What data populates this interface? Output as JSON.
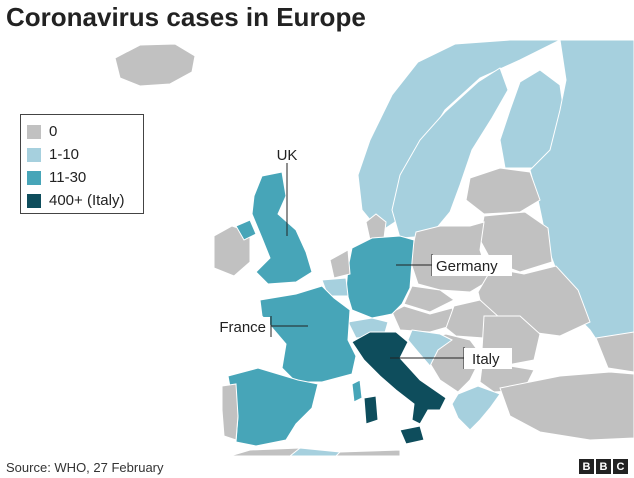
{
  "title": "Coronavirus cases in Europe",
  "colors": {
    "sea": "#ffffff",
    "border": "#ffffff",
    "zero": "#c1c1c1",
    "low": "#a6d0de",
    "mid": "#47a5b8",
    "high": "#0e4d5c",
    "label_box_border": "#333333"
  },
  "legend": [
    {
      "label": "0",
      "color": "#c1c1c1"
    },
    {
      "label": "1-10",
      "color": "#a6d0de"
    },
    {
      "label": "11-30",
      "color": "#47a5b8"
    },
    {
      "label": "400+ (Italy)",
      "color": "#0e4d5c"
    }
  ],
  "callouts": {
    "uk": "UK",
    "germany": "Germany",
    "france": "France",
    "italy": "Italy"
  },
  "source": "Source: WHO, 27 February",
  "logo": [
    "B",
    "B",
    "C"
  ]
}
